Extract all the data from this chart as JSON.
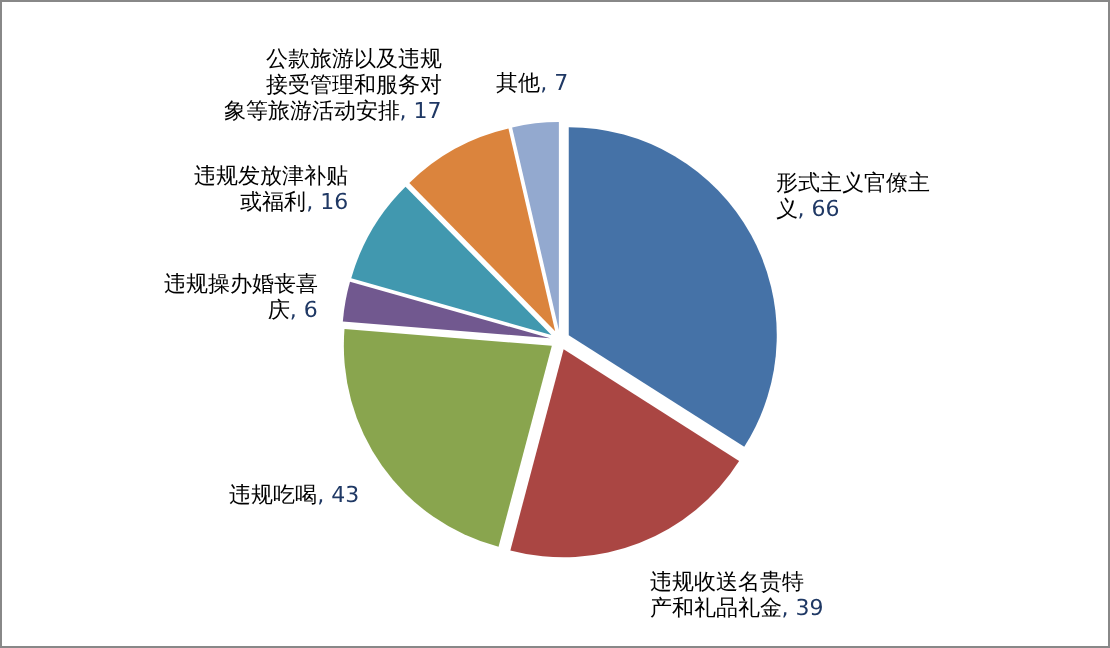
{
  "chart_data": {
    "type": "pie",
    "categories": [
      "形式主义官僚主义",
      "违规收送名贵特产和礼品礼金",
      "违规吃喝",
      "违规操办婚丧喜庆",
      "违规发放津补贴或福利",
      "公款旅游以及违规接受管理和服务对象等旅游活动安排",
      "其他"
    ],
    "values": [
      66,
      39,
      43,
      6,
      16,
      17,
      7
    ],
    "value_labels": [
      ", 66",
      ", 39",
      ", 43",
      ", 6",
      ", 16",
      ", 17",
      ", 7"
    ],
    "colors": [
      "#4572a7",
      "#aa4643",
      "#89a54e",
      "#71588f",
      "#4198af",
      "#db843d",
      "#93a9cf"
    ]
  }
}
